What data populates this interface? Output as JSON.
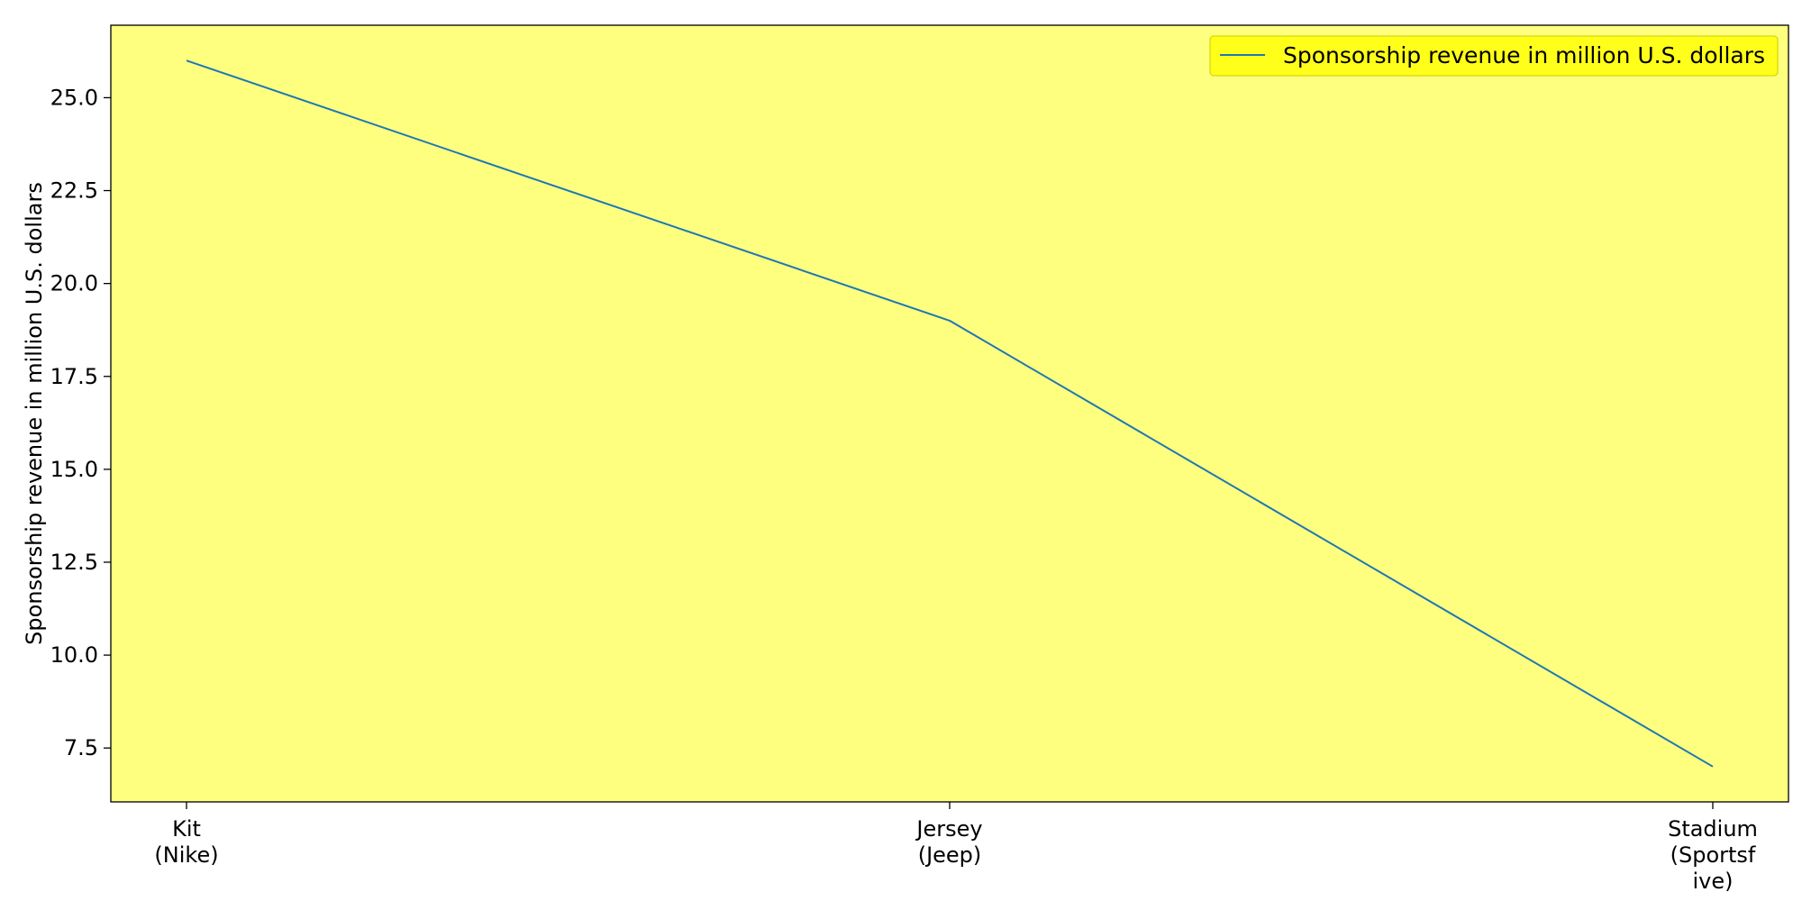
{
  "colors": {
    "plot_background": "#ffff7f",
    "legend_background": "#ffff19",
    "line": "#1f77b4",
    "axis": "#000000"
  },
  "chart_data": {
    "type": "line",
    "title": "",
    "xlabel": "",
    "ylabel": "Sponsorship revenue in million U.S. dollars",
    "categories": [
      [
        "Kit",
        "(Nike)"
      ],
      [
        "Jersey",
        "(Jeep)"
      ],
      [
        "Stadium",
        "(Sportsf",
        "ive)"
      ]
    ],
    "series": [
      {
        "name": "Sponsorship revenue in million U.S. dollars",
        "values": [
          26,
          19,
          7
        ]
      }
    ],
    "ylim": [
      6.05,
      26.95
    ],
    "yticks": [
      7.5,
      10.0,
      12.5,
      15.0,
      17.5,
      20.0,
      22.5,
      25.0
    ],
    "grid": false,
    "legend_position": "top-right"
  }
}
